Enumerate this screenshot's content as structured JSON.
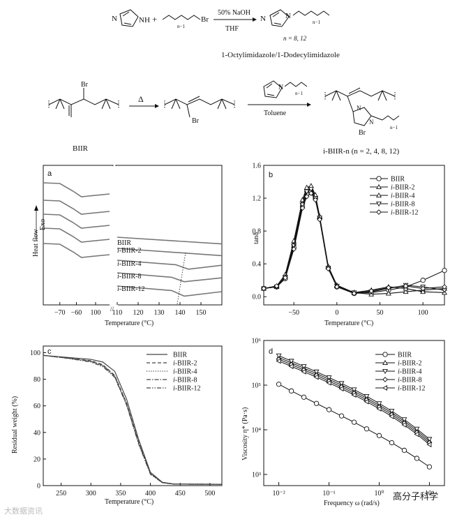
{
  "scheme": {
    "reagent_top": "50% NaOH",
    "solvent_top": "THF",
    "n_note": "n = 8, 12",
    "product_label": "1-Octylimidazole/1-Dodecylimidazole",
    "br_label": "Br",
    "nh_label": "NH",
    "n_label": "N",
    "plus": "+",
    "nminus1": "n−1",
    "heat": "Δ",
    "solvent_bottom": "Toluene",
    "biir_label": "BIIR",
    "ibiir_label": "i-BIIR-n (n = 2, 4, 8, 12)"
  },
  "chart_data": [
    {
      "id": "a",
      "type": "line",
      "panel_label": "a",
      "xlabel": "Temperature (°C)",
      "ylabel_top": "Exo",
      "ylabel_bottom": "Heat flow",
      "xticks_left": [
        -70,
        -60,
        100
      ],
      "xticks_right": [
        110,
        120,
        130,
        140,
        150
      ],
      "series": [
        {
          "name": "BIIR",
          "left": [
            [
              -80,
              0.0
            ],
            [
              -70,
              -0.1
            ],
            [
              -62,
              -1.2
            ],
            [
              -57,
              -2.0
            ],
            [
              -40,
              -1.6
            ]
          ],
          "right": [
            [
              110,
              0
            ],
            [
              160,
              -1.2
            ]
          ]
        },
        {
          "name": "i-BIIR-2",
          "left": [
            [
              -80,
              0.0
            ],
            [
              -70,
              -0.1
            ],
            [
              -62,
              -1.2
            ],
            [
              -57,
              -2.0
            ],
            [
              -40,
              -1.6
            ]
          ],
          "right": [
            [
              110,
              0
            ],
            [
              160,
              -1.3
            ]
          ]
        },
        {
          "name": "i-BIIR-4",
          "left": [
            [
              -80,
              0.0
            ],
            [
              -70,
              -0.1
            ],
            [
              -62,
              -1.2
            ],
            [
              -57,
              -2.0
            ],
            [
              -40,
              -1.6
            ]
          ],
          "right": [
            [
              110,
              0
            ],
            [
              138,
              -0.8
            ],
            [
              144,
              -1.6
            ],
            [
              160,
              -0.9
            ]
          ]
        },
        {
          "name": "i-BIIR-8",
          "left": [
            [
              -80,
              0.0
            ],
            [
              -70,
              -0.1
            ],
            [
              -62,
              -1.2
            ],
            [
              -57,
              -2.0
            ],
            [
              -40,
              -1.6
            ]
          ],
          "right": [
            [
              110,
              0
            ],
            [
              136,
              -0.8
            ],
            [
              142,
              -1.6
            ],
            [
              160,
              -0.9
            ]
          ]
        },
        {
          "name": "i-BIIR-12",
          "left": [
            [
              -80,
              0.0
            ],
            [
              -70,
              -0.1
            ],
            [
              -62,
              -1.2
            ],
            [
              -57,
              -2.0
            ],
            [
              -40,
              -1.6
            ]
          ],
          "right": [
            [
              110,
              0
            ],
            [
              136,
              -0.8
            ],
            [
              142,
              -1.8
            ],
            [
              160,
              -1.0
            ]
          ]
        }
      ],
      "legend": [
        "BIIR",
        "i-BIIR-2",
        "i-BIIR-4",
        "i-BIIR-8",
        "i-BIIR-12"
      ]
    },
    {
      "id": "b",
      "type": "line",
      "panel_label": "b",
      "xlabel": "Temperature (°C)",
      "ylabel": "tanδ",
      "xlim": [
        -85,
        125
      ],
      "ylim": [
        -0.1,
        1.6
      ],
      "xticks": [
        -50,
        0,
        50,
        100
      ],
      "yticks": [
        0.0,
        0.4,
        0.8,
        1.2,
        1.6
      ],
      "series": [
        {
          "name": "BIIR",
          "marker": "circle",
          "x": [
            -85,
            -70,
            -60,
            -50,
            -40,
            -35,
            -30,
            -25,
            -20,
            -10,
            0,
            20,
            40,
            60,
            80,
            100,
            125
          ],
          "y": [
            0.1,
            0.12,
            0.22,
            0.6,
            1.1,
            1.25,
            1.28,
            1.2,
            0.95,
            0.35,
            0.12,
            0.04,
            0.05,
            0.08,
            0.12,
            0.2,
            0.32
          ]
        },
        {
          "name": "i-BIIR-2",
          "marker": "triangle-up",
          "x": [
            -85,
            -70,
            -60,
            -50,
            -40,
            -35,
            -30,
            -25,
            -20,
            -10,
            0,
            20,
            40,
            60,
            80,
            100,
            125
          ],
          "y": [
            0.1,
            0.12,
            0.25,
            0.65,
            1.15,
            1.3,
            1.32,
            1.22,
            0.97,
            0.36,
            0.13,
            0.05,
            0.03,
            0.04,
            0.06,
            0.08,
            0.1
          ]
        },
        {
          "name": "i-BIIR-4",
          "marker": "triangle-up",
          "x": [
            -85,
            -70,
            -60,
            -50,
            -40,
            -35,
            -30,
            -25,
            -20,
            -10,
            0,
            20,
            40,
            60,
            80,
            100,
            125
          ],
          "y": [
            0.1,
            0.13,
            0.27,
            0.68,
            1.18,
            1.33,
            1.35,
            1.24,
            0.98,
            0.37,
            0.14,
            0.05,
            0.08,
            0.12,
            0.1,
            0.06,
            0.05
          ]
        },
        {
          "name": "i-BIIR-8",
          "marker": "triangle-down",
          "x": [
            -85,
            -70,
            -60,
            -50,
            -40,
            -35,
            -30,
            -25,
            -20,
            -10,
            0,
            20,
            40,
            60,
            80,
            100,
            125
          ],
          "y": [
            0.1,
            0.12,
            0.24,
            0.62,
            1.12,
            1.28,
            1.31,
            1.2,
            0.96,
            0.35,
            0.13,
            0.05,
            0.06,
            0.1,
            0.14,
            0.12,
            0.08
          ]
        },
        {
          "name": "i-BIIR-12",
          "marker": "diamond",
          "x": [
            -85,
            -70,
            -60,
            -50,
            -40,
            -35,
            -30,
            -25,
            -20,
            -10,
            0,
            20,
            40,
            60,
            80,
            100,
            125
          ],
          "y": [
            0.1,
            0.13,
            0.23,
            0.58,
            1.08,
            1.22,
            1.26,
            1.18,
            0.94,
            0.34,
            0.12,
            0.04,
            0.07,
            0.11,
            0.13,
            0.1,
            0.12
          ]
        }
      ]
    },
    {
      "id": "c",
      "type": "line",
      "panel_label": "c",
      "xlabel": "Temperature (°C)",
      "ylabel": "Residual weight (%)",
      "xlim": [
        220,
        520
      ],
      "ylim": [
        0,
        105
      ],
      "xticks": [
        250,
        300,
        350,
        400,
        450,
        500
      ],
      "yticks": [
        0,
        20,
        40,
        60,
        80,
        100
      ],
      "series": [
        {
          "name": "BIIR",
          "style": "solid",
          "x": [
            220,
            260,
            300,
            320,
            340,
            360,
            380,
            400,
            420,
            440,
            520
          ],
          "y": [
            98,
            96.5,
            95,
            93,
            86,
            65,
            35,
            10,
            2.5,
            1.2,
            1
          ]
        },
        {
          "name": "i-BIIR-2",
          "style": "dashed",
          "x": [
            220,
            260,
            300,
            320,
            340,
            360,
            380,
            400,
            420,
            440,
            520
          ],
          "y": [
            98,
            96,
            94,
            91,
            83,
            62,
            33,
            9,
            2.3,
            1.1,
            1
          ]
        },
        {
          "name": "i-BIIR-4",
          "style": "dotted",
          "x": [
            220,
            260,
            300,
            320,
            340,
            360,
            380,
            400,
            420,
            440,
            520
          ],
          "y": [
            98,
            96,
            93.5,
            90,
            82,
            61,
            32,
            9,
            2.2,
            1.1,
            1
          ]
        },
        {
          "name": "i-BIIR-8",
          "style": "dashdot",
          "x": [
            220,
            260,
            300,
            320,
            340,
            360,
            380,
            400,
            420,
            440,
            520
          ],
          "y": [
            98,
            96,
            93.5,
            90.5,
            82.5,
            61.5,
            32.5,
            9,
            2.2,
            1.1,
            1
          ]
        },
        {
          "name": "i-BIIR-12",
          "style": "dashdotdot",
          "x": [
            220,
            260,
            300,
            320,
            340,
            360,
            380,
            400,
            420,
            440,
            520
          ],
          "y": [
            98,
            95.8,
            93,
            89.5,
            81.5,
            60.5,
            31.5,
            8.5,
            2.2,
            1.1,
            1
          ]
        }
      ]
    },
    {
      "id": "d",
      "type": "scatter",
      "panel_label": "d",
      "xlabel": "Frequency ω (rad/s)",
      "ylabel": "Viscosity η* (Pa·s)",
      "xscale": "log",
      "yscale": "log",
      "xlim_exp": [
        -2.3,
        1.3
      ],
      "ylim_exp": [
        2.75,
        6
      ],
      "xticks": [
        "10⁻²",
        "10⁻¹",
        "10⁰",
        "10¹"
      ],
      "yticks": [
        "10³",
        "10⁴",
        "10⁵",
        "10⁶"
      ],
      "series": [
        {
          "name": "BIIR",
          "marker": "circle",
          "log_x": [
            -2,
            -1.75,
            -1.5,
            -1.25,
            -1,
            -0.75,
            -0.5,
            -0.25,
            0,
            0.25,
            0.5,
            0.75,
            1
          ],
          "log_y": [
            5.02,
            4.87,
            4.73,
            4.59,
            4.45,
            4.31,
            4.17,
            4.02,
            3.87,
            3.71,
            3.54,
            3.36,
            3.17
          ]
        },
        {
          "name": "i-BIIR-2",
          "marker": "triangle-up",
          "log_x": [
            -2,
            -1.75,
            -1.5,
            -1.25,
            -1,
            -0.75,
            -0.5,
            -0.25,
            0,
            0.25,
            0.5,
            0.75,
            1
          ],
          "log_y": [
            5.62,
            5.5,
            5.38,
            5.26,
            5.13,
            5.0,
            4.86,
            4.71,
            4.55,
            4.38,
            4.19,
            3.98,
            3.75
          ]
        },
        {
          "name": "i-BIIR-4",
          "marker": "triangle-down",
          "log_x": [
            -2,
            -1.75,
            -1.5,
            -1.25,
            -1,
            -0.75,
            -0.5,
            -0.25,
            0,
            0.25,
            0.5,
            0.75,
            1
          ],
          "log_y": [
            5.66,
            5.54,
            5.42,
            5.3,
            5.17,
            5.04,
            4.9,
            4.75,
            4.59,
            4.42,
            4.23,
            4.02,
            3.79
          ]
        },
        {
          "name": "i-BIIR-8",
          "marker": "diamond",
          "log_x": [
            -2,
            -1.75,
            -1.5,
            -1.25,
            -1,
            -0.75,
            -0.5,
            -0.25,
            0,
            0.25,
            0.5,
            0.75,
            1
          ],
          "log_y": [
            5.58,
            5.46,
            5.34,
            5.22,
            5.09,
            4.96,
            4.82,
            4.67,
            4.51,
            4.34,
            4.15,
            3.94,
            3.71
          ]
        },
        {
          "name": "i-BIIR-12",
          "marker": "triangle-left",
          "log_x": [
            -2,
            -1.75,
            -1.5,
            -1.25,
            -1,
            -0.75,
            -0.5,
            -0.25,
            0,
            0.25,
            0.5,
            0.75,
            1
          ],
          "log_y": [
            5.54,
            5.42,
            5.3,
            5.18,
            5.05,
            4.92,
            4.78,
            4.63,
            4.47,
            4.3,
            4.11,
            3.9,
            3.67
          ]
        }
      ]
    }
  ],
  "watermark": {
    "left": "大数据资讯",
    "right": "高分子科学"
  }
}
